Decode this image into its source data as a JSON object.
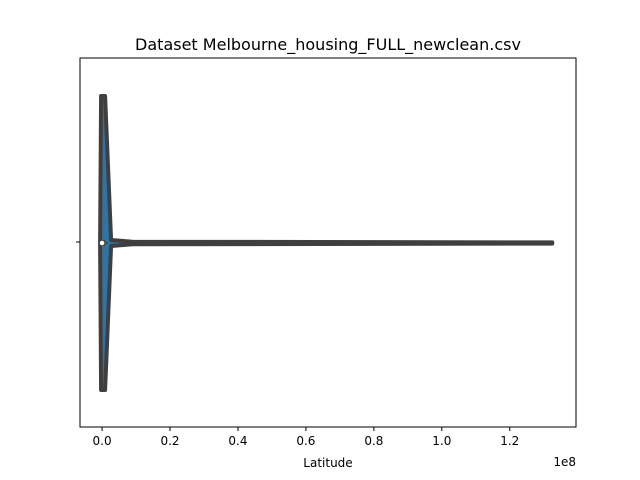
{
  "chart_data": {
    "type": "violin",
    "title": "Dataset Melbourne_housing_FULL_newclean.csv",
    "xlabel": "Latitude",
    "ylabel": "",
    "x_offset_text": "1e8",
    "x_ticks": [
      0.0,
      0.2,
      0.4,
      0.6,
      0.8,
      1.0,
      1.2
    ],
    "x_tick_labels": [
      "0.0",
      "0.2",
      "0.4",
      "0.6",
      "0.8",
      "1.0",
      "1.2"
    ],
    "xlim": [
      -0.065,
      1.395
    ],
    "x_unit_multiplier": 100000000,
    "violin": {
      "min": 0.0,
      "max": 1.325,
      "median": 0.0,
      "q1": 0.0,
      "q3": 0.0,
      "fill_color": "#3274a1",
      "edge_color": "#3f3f3f"
    },
    "grid": false
  }
}
